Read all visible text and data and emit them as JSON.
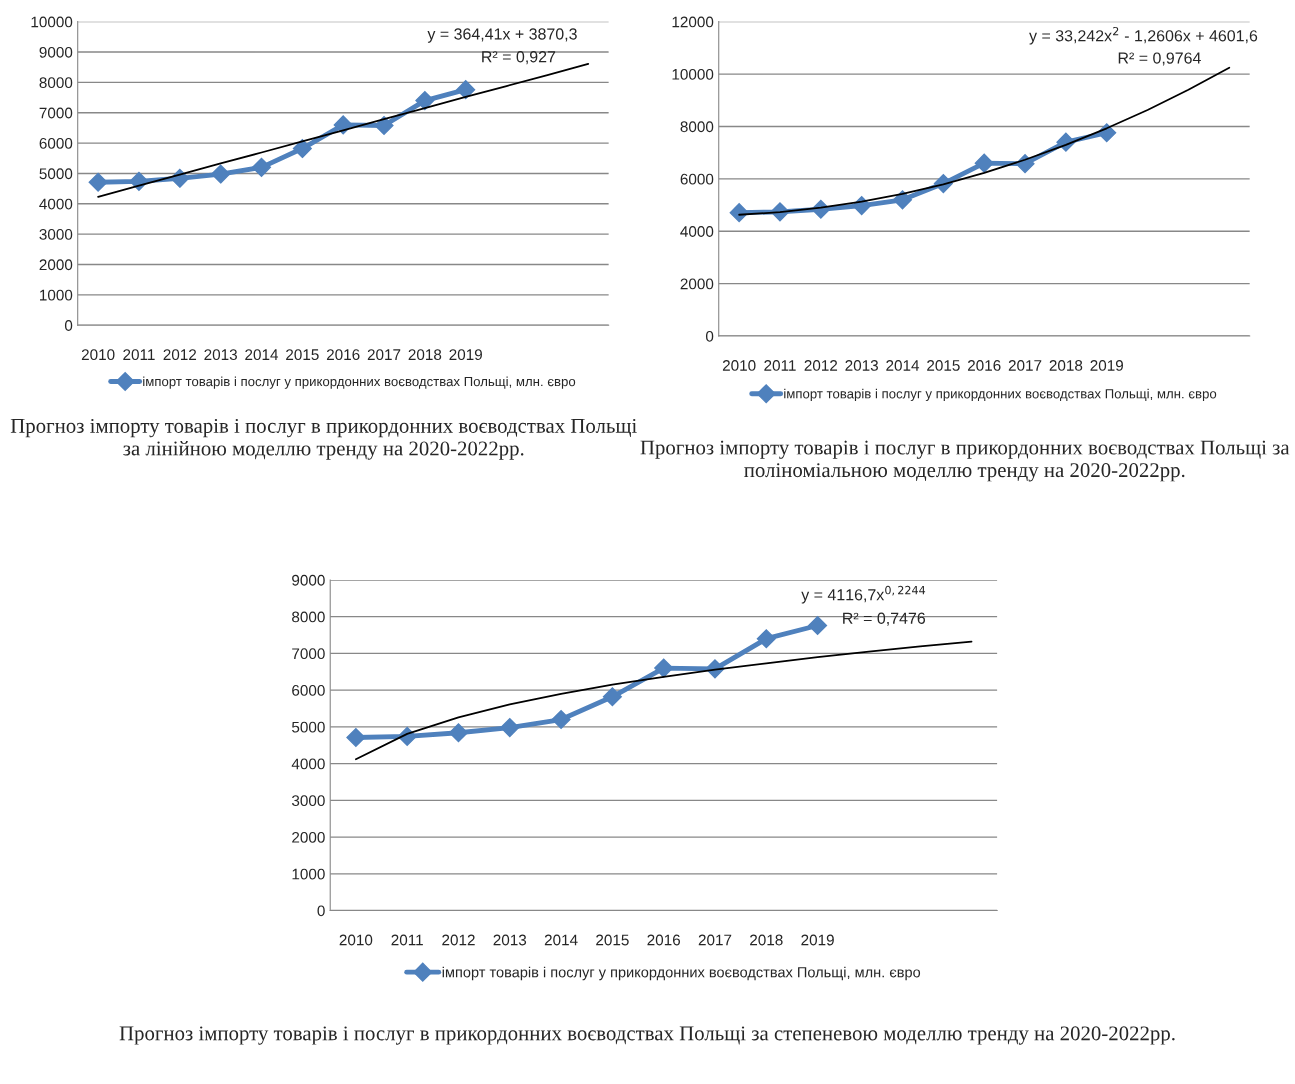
{
  "chart_data": [
    {
      "type": "line",
      "title": "Прогноз імпорту товарів і послуг в прикордонних воєводствах Польщі за лінійною моделлю тренду на 2020-2022рр.",
      "categories": [
        "2010",
        "2011",
        "2012",
        "2013",
        "2014",
        "2015",
        "2016",
        "2017",
        "2018",
        "2019",
        null,
        null,
        null
      ],
      "ylim": [
        0,
        10000
      ],
      "yticks": [
        0,
        1000,
        2000,
        3000,
        4000,
        5000,
        6000,
        7000,
        8000,
        9000,
        10000
      ],
      "grid": "y",
      "legend": "bottom",
      "marker": "diamond",
      "line_style": "solid",
      "annotations": [
        "y = 364,41x + 3870,3",
        "R² = 0,927"
      ],
      "series": [
        {
          "name": "імпорт товарів і послуг у прикордонних воєводствах Польщі, млн. євро",
          "color": "#4f81bd",
          "values": [
            4710,
            4740,
            4840,
            4980,
            5200,
            5820,
            6600,
            6580,
            7400,
            7760,
            null,
            null,
            null
          ]
        },
        {
          "type": "line",
          "color": "#000000",
          "marker": "none",
          "values": [
            4230,
            4600,
            4960,
            5330,
            5690,
            6060,
            6420,
            6790,
            7150,
            7520,
            7880,
            8240,
            8610
          ]
        }
      ]
    },
    {
      "type": "line",
      "title": "Прогноз імпорту товарів і послуг в прикордонних воєводствах Польщі за поліноміальною моделлю тренду на 2020-2022рр.",
      "categories": [
        "2010",
        "2011",
        "2012",
        "2013",
        "2014",
        "2015",
        "2016",
        "2017",
        "2018",
        "2019",
        null,
        null,
        null
      ],
      "ylim": [
        0,
        12000
      ],
      "yticks": [
        0,
        2000,
        4000,
        6000,
        8000,
        10000,
        12000
      ],
      "grid": "y",
      "legend": "bottom",
      "marker": "diamond",
      "line_style": "solid",
      "annotations": [
        "y = 33,242x$^{2}$ - 1,2606x + 4601,6",
        "R² = 0,9764"
      ],
      "series": [
        {
          "name": "імпорт товарів і послуг у прикордонних воєводствах Польщі, млн. євро",
          "color": "#4f81bd",
          "values": [
            4710,
            4740,
            4840,
            4980,
            5200,
            5820,
            6600,
            6580,
            7400,
            7760,
            null,
            null,
            null
          ]
        },
        {
          "type": "line",
          "color": "#000000",
          "marker": "none",
          "values": [
            4630,
            4730,
            4900,
            5130,
            5430,
            5790,
            6230,
            6730,
            7300,
            7930,
            8630,
            9400,
            10240
          ]
        }
      ]
    },
    {
      "type": "line",
      "title": "Прогноз імпорту товарів і послуг в прикордонних воєводствах Польщі за степеневою моделлю тренду на 2020-2022рр.",
      "categories": [
        "2010",
        "2011",
        "2012",
        "2013",
        "2014",
        "2015",
        "2016",
        "2017",
        "2018",
        "2019",
        null,
        null,
        null
      ],
      "ylim": [
        0,
        9000
      ],
      "yticks": [
        0,
        1000,
        2000,
        3000,
        4000,
        5000,
        6000,
        7000,
        8000,
        9000
      ],
      "grid": "y",
      "legend": "bottom",
      "marker": "diamond",
      "line_style": "solid",
      "annotations": [
        "y = 4116,7x$^{0,2244}$",
        "R² = 0,7476"
      ],
      "series": [
        {
          "name": "імпорт товарів і послуг у прикордонних воєводствах Польщі, млн. євро",
          "color": "#4f81bd",
          "values": [
            4710,
            4740,
            4840,
            4980,
            5200,
            5820,
            6600,
            6580,
            7400,
            7760,
            null,
            null,
            null
          ]
        },
        {
          "type": "line",
          "color": "#000000",
          "marker": "none",
          "values": [
            4120,
            4810,
            5260,
            5610,
            5900,
            6150,
            6360,
            6560,
            6730,
            6900,
            7050,
            7190,
            7320
          ]
        }
      ]
    }
  ]
}
